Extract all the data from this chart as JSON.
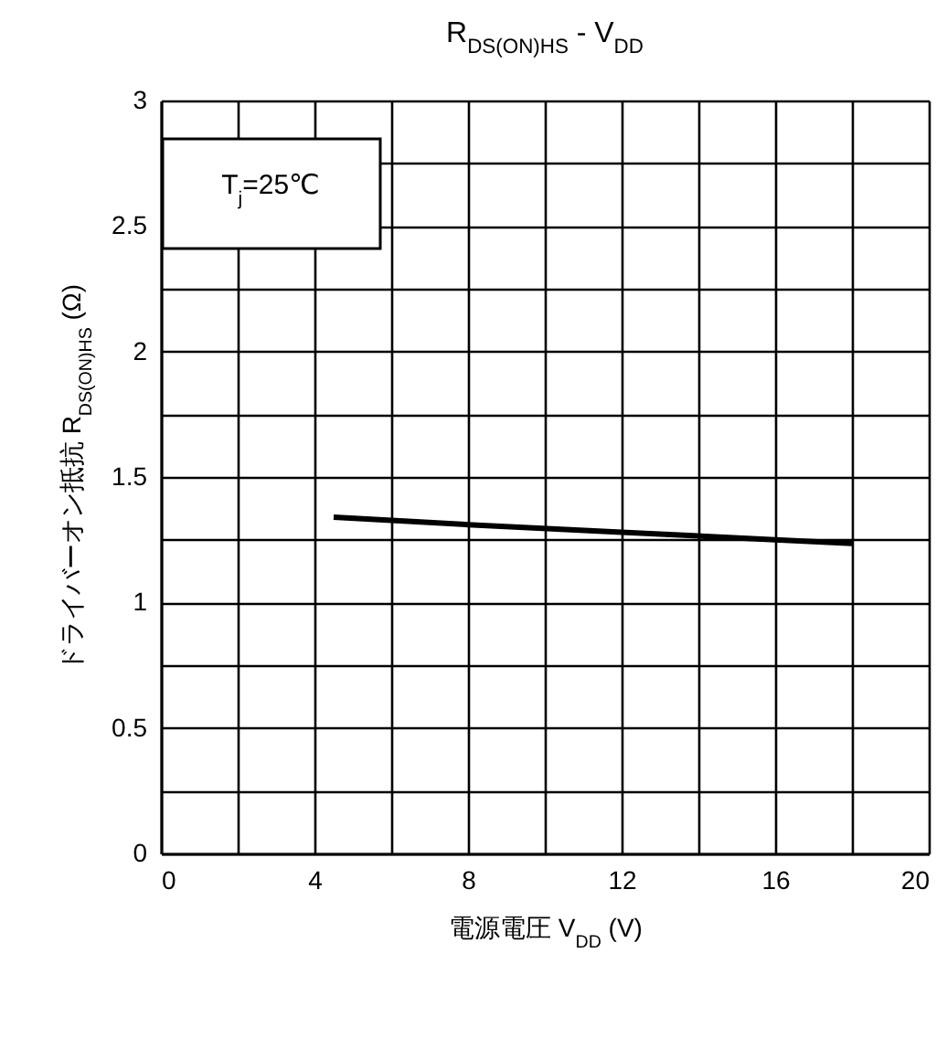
{
  "chart_data": {
    "type": "line",
    "title": "R$_{DS(ON)HS}$ - V$_{DD}$",
    "xlabel": "電源電圧 V$_{DD}$ (V)",
    "ylabel": "ドライバーオン抵抗 R$_{DS(ON)HS}$ (Ω)",
    "annotations": [
      "T$_{j}$=25℃"
    ],
    "x": [
      4.5,
      8,
      12,
      16,
      18
    ],
    "series": [
      {
        "color": "#000000",
        "values": [
          1.34,
          1.31,
          1.28,
          1.25,
          1.235
        ]
      }
    ],
    "xlim": [
      0,
      20
    ],
    "ylim": [
      0,
      3
    ],
    "xticks": [
      0,
      {
        "value": 2,
        "label": null
      },
      4,
      {
        "value": 6,
        "label": null
      },
      8,
      {
        "value": 10,
        "label": null
      },
      12,
      {
        "value": 14,
        "label": null
      },
      16,
      {
        "value": 18,
        "label": null
      },
      20
    ],
    "yticks": [
      0,
      {
        "value": 0.25,
        "label": null
      },
      0.5,
      {
        "value": 0.75,
        "label": null
      },
      1,
      {
        "value": 1.25,
        "label": null
      },
      1.5,
      {
        "value": 1.75,
        "label": null
      },
      2,
      {
        "value": 2.25,
        "label": null
      },
      2.5,
      {
        "value": 2.75,
        "label": null
      },
      3
    ],
    "grid": true
  }
}
